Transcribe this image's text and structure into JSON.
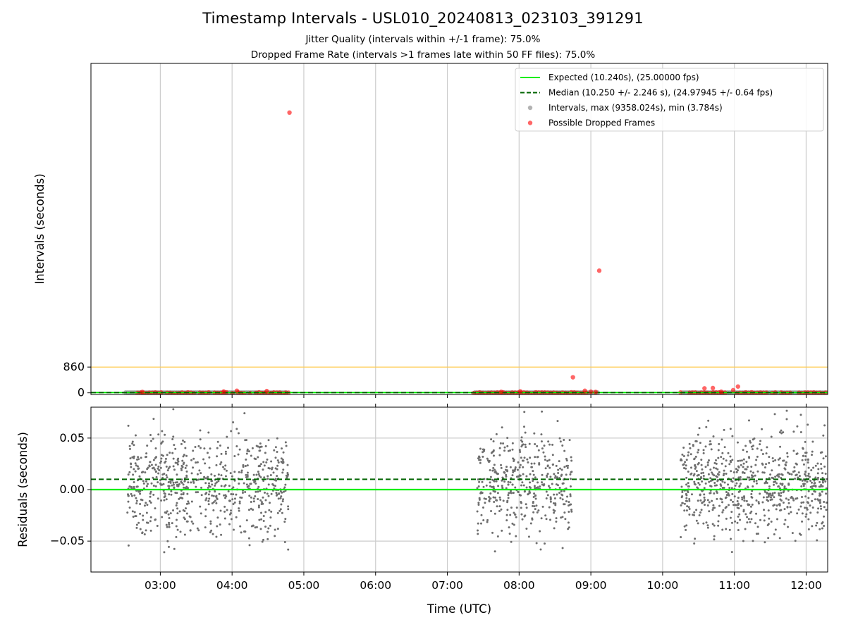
{
  "title": "Timestamp Intervals - USL010_20240813_023103_391291",
  "subtitle_lines": [
    "Jitter Quality (intervals within +/-1 frame): 75.0%",
    "Dropped Frame Rate (intervals >1 frames late within 50 FF files): 75.0%"
  ],
  "colors": {
    "expected": "#00ee00",
    "median": "#006400",
    "intervals": "#808080",
    "dropped": "#ff0000",
    "threshold": "#ffcc55",
    "grid": "#cccccc"
  },
  "chart_data": [
    {
      "type": "scatter",
      "xlabel": "",
      "ylabel": "Intervals (seconds)",
      "xlim": [
        "02:02",
        "12:18"
      ],
      "ylim": [
        -55,
        11000
      ],
      "yticks": [
        0,
        860
      ],
      "grid": "x",
      "threshold_line": 860,
      "legend_position": "upper right",
      "lines": [
        {
          "name": "Expected (10.240s), (25.00000 fps)",
          "style": "solid",
          "y": 10.24
        },
        {
          "name": "Median (10.250 +/- 2.246 s), (24.97945 +/- 0.64 fps)",
          "style": "dashed",
          "y": 10.25
        }
      ],
      "series": [
        {
          "name": "Intervals, max (9358.024s), min (3.784s)",
          "segments": [
            [
              "02:31",
              "04:47"
            ],
            [
              "07:23",
              "09:07"
            ],
            [
              "10:17",
              "12:18"
            ]
          ],
          "value": 10.24
        },
        {
          "name": "Possible Dropped Frames",
          "points": [
            {
              "x": "04:48",
              "y": 9358.024
            },
            {
              "x": "09:07",
              "y": 4080
            },
            {
              "x": "08:45",
              "y": 520
            },
            {
              "x": "10:42",
              "y": 160
            },
            {
              "x": "10:35",
              "y": 150
            },
            {
              "x": "11:03",
              "y": 210
            },
            {
              "x": "10:59",
              "y": 90
            },
            {
              "x": "04:04",
              "y": 70
            },
            {
              "x": "04:29",
              "y": 60
            },
            {
              "x": "08:55",
              "y": 70
            },
            {
              "x": "08:01",
              "y": 50
            },
            {
              "x": "03:53",
              "y": 45
            },
            {
              "x": "09:00",
              "y": 40
            },
            {
              "x": "10:49",
              "y": 40
            },
            {
              "x": "07:45",
              "y": 35
            },
            {
              "x": "02:45",
              "y": 30
            },
            {
              "x": "09:04",
              "y": 30
            }
          ]
        }
      ]
    },
    {
      "type": "scatter",
      "xlabel": "Time (UTC)",
      "ylabel": "Residuals (seconds)",
      "xlim": [
        "02:02",
        "12:18"
      ],
      "xticks": [
        "03:00",
        "04:00",
        "05:00",
        "06:00",
        "07:00",
        "08:00",
        "09:00",
        "10:00",
        "11:00",
        "12:00"
      ],
      "ylim": [
        -0.08,
        0.08
      ],
      "yticks": [
        "0.05",
        "0.00",
        "−0.05"
      ],
      "ytick_values": [
        0.05,
        0.0,
        -0.05
      ],
      "grid": "both",
      "lines": [
        {
          "name": "Expected",
          "style": "solid",
          "y": 0.0
        },
        {
          "name": "Median",
          "style": "dashed",
          "y": 0.01
        }
      ],
      "series": [
        {
          "name": "Residuals",
          "segments": [
            {
              "start": "02:32",
              "end": "04:47",
              "count": 700
            },
            {
              "start": "07:25",
              "end": "08:44",
              "count": 430
            },
            {
              "start": "10:15",
              "end": "12:18",
              "count": 720
            }
          ],
          "center": 0.005,
          "spread": [
            -0.065,
            0.079
          ]
        }
      ]
    }
  ]
}
